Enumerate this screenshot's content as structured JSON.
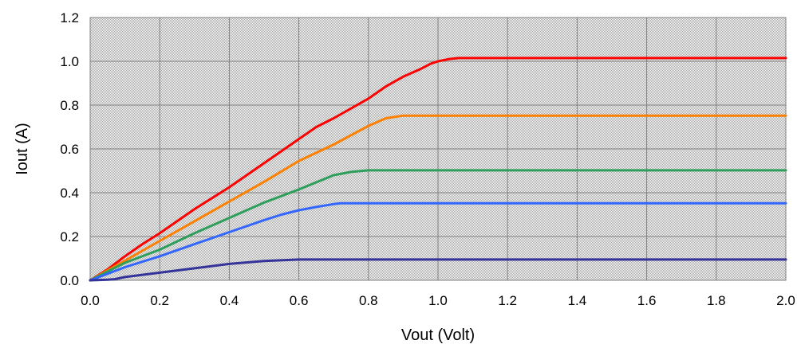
{
  "chart_data": {
    "type": "line",
    "title": "",
    "xlabel": "Vout (Volt)",
    "ylabel": "Iout (A)",
    "xlim": [
      0.0,
      2.0
    ],
    "ylim": [
      0.0,
      1.2
    ],
    "x_ticks": [
      "0.0",
      "0.2",
      "0.4",
      "0.6",
      "0.8",
      "1.0",
      "1.2",
      "1.4",
      "1.6",
      "1.8",
      "2.0"
    ],
    "y_ticks": [
      "0.0",
      "0.2",
      "0.4",
      "0.6",
      "0.8",
      "1.0",
      "1.2"
    ],
    "grid": true,
    "legend": "none",
    "plot_background": "#d9d9d9",
    "series": [
      {
        "color": "#ff0000",
        "x": [
          0.0,
          0.05,
          0.1,
          0.15,
          0.2,
          0.3,
          0.4,
          0.5,
          0.6,
          0.65,
          0.7,
          0.8,
          0.85,
          0.9,
          0.95,
          0.98,
          1.0,
          1.03,
          1.06,
          1.2,
          1.4,
          1.6,
          1.8,
          2.0
        ],
        "y": [
          0.0,
          0.05,
          0.11,
          0.165,
          0.215,
          0.325,
          0.425,
          0.535,
          0.645,
          0.7,
          0.74,
          0.83,
          0.885,
          0.93,
          0.965,
          0.99,
          1.0,
          1.01,
          1.015,
          1.015,
          1.015,
          1.015,
          1.015,
          1.015
        ]
      },
      {
        "color": "#ff7f00",
        "x": [
          0.0,
          0.05,
          0.1,
          0.2,
          0.3,
          0.4,
          0.5,
          0.6,
          0.7,
          0.8,
          0.85,
          0.9,
          1.0,
          1.2,
          1.4,
          1.6,
          1.8,
          2.0
        ],
        "y": [
          0.0,
          0.045,
          0.09,
          0.18,
          0.27,
          0.36,
          0.45,
          0.545,
          0.62,
          0.705,
          0.74,
          0.752,
          0.752,
          0.752,
          0.752,
          0.752,
          0.752,
          0.752
        ],
        "name": ""
      },
      {
        "color": "#2e9e5b",
        "x": [
          0.0,
          0.05,
          0.1,
          0.2,
          0.3,
          0.4,
          0.5,
          0.6,
          0.7,
          0.75,
          0.8,
          1.0,
          1.2,
          1.4,
          1.6,
          1.8,
          2.0
        ],
        "y": [
          0.0,
          0.04,
          0.08,
          0.14,
          0.215,
          0.285,
          0.355,
          0.415,
          0.48,
          0.495,
          0.502,
          0.502,
          0.502,
          0.502,
          0.502,
          0.502,
          0.502
        ]
      },
      {
        "color": "#3366ff",
        "x": [
          0.0,
          0.05,
          0.1,
          0.2,
          0.3,
          0.4,
          0.5,
          0.55,
          0.6,
          0.65,
          0.7,
          0.72,
          1.0,
          1.2,
          1.4,
          1.6,
          1.8,
          2.0
        ],
        "y": [
          0.0,
          0.03,
          0.06,
          0.11,
          0.165,
          0.22,
          0.275,
          0.3,
          0.32,
          0.335,
          0.348,
          0.352,
          0.352,
          0.352,
          0.352,
          0.352,
          0.352,
          0.352
        ]
      },
      {
        "color": "#333399",
        "x": [
          0.0,
          0.05,
          0.07,
          0.1,
          0.15,
          0.2,
          0.3,
          0.4,
          0.5,
          0.6,
          1.0,
          1.2,
          1.4,
          1.6,
          1.8,
          2.0
        ],
        "y": [
          0.0,
          0.003,
          0.005,
          0.015,
          0.025,
          0.035,
          0.055,
          0.075,
          0.088,
          0.095,
          0.095,
          0.095,
          0.095,
          0.095,
          0.095,
          0.095
        ]
      }
    ]
  }
}
